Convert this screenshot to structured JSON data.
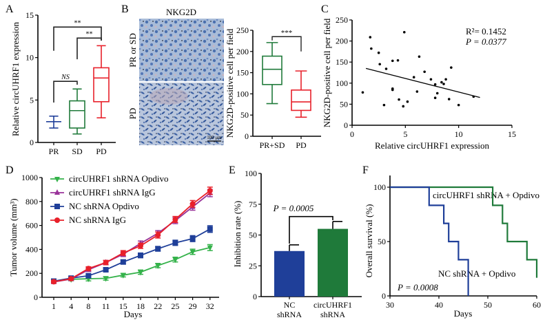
{
  "figure": {
    "panel_letters": [
      "A",
      "B",
      "C",
      "D",
      "E",
      "F"
    ]
  },
  "colors": {
    "blue": "#1f3f99",
    "green": "#1f7a3a",
    "red": "#e8202a",
    "light_green": "#34b24a",
    "purple": "#993399",
    "black": "#000000"
  },
  "chart_data": [
    {
      "panel": "A",
      "type": "box",
      "title": "",
      "xlabel": "",
      "ylabel": "Relative circUHRF1 expression",
      "ylim": [
        0,
        15
      ],
      "yticks": [
        "0",
        "5",
        "10",
        "15"
      ],
      "categories": [
        "PR",
        "SD",
        "PD"
      ],
      "boxes": [
        {
          "name": "PR",
          "color": "blue",
          "min": 1.7,
          "q1": 2.45,
          "median": 2.45,
          "q3": 2.45,
          "max": 3.1
        },
        {
          "name": "SD",
          "color": "green",
          "min": 1.0,
          "q1": 1.7,
          "median": 3.75,
          "q3": 4.9,
          "max": 6.3
        },
        {
          "name": "PD",
          "color": "red",
          "min": 2.9,
          "q1": 4.8,
          "median": 7.6,
          "q3": 8.8,
          "max": 11.4
        }
      ],
      "annotations": [
        {
          "from": "PR",
          "to": "SD",
          "text": "NS",
          "italic": true,
          "level": 7.2
        },
        {
          "from": "SD",
          "to": "PD",
          "text": "**",
          "italic": false,
          "level": 12.3
        },
        {
          "from": "PR",
          "to": "PD",
          "text": "**",
          "italic": false,
          "level": 13.6
        }
      ]
    },
    {
      "panel": "B",
      "type": "box",
      "image_title": "NKG2D",
      "image_row_labels": [
        "PR or SD",
        "PD"
      ],
      "scale_bar": "100 μm",
      "ylabel": "NKG2D-positive cell per field",
      "ylim": [
        0,
        250
      ],
      "yticks": [
        "0",
        "50",
        "100",
        "150",
        "200",
        "250"
      ],
      "categories": [
        "PR+SD",
        "PD"
      ],
      "boxes": [
        {
          "name": "PR+SD",
          "color": "green",
          "min": 77,
          "q1": 122,
          "median": 158,
          "q3": 189,
          "max": 221
        },
        {
          "name": "PD",
          "color": "red",
          "min": 45,
          "q1": 61,
          "median": 81,
          "q3": 109,
          "max": 154
        }
      ],
      "annotations": [
        {
          "from": "PR+SD",
          "to": "PD",
          "text": "***",
          "level": 235
        }
      ]
    },
    {
      "panel": "C",
      "type": "scatter",
      "xlabel": "Relative circUHRF1 expression",
      "ylabel": "NKG2D-positive cell per field",
      "xlim": [
        0,
        15
      ],
      "ylim": [
        0,
        250
      ],
      "xticks": [
        "0",
        "5",
        "10",
        "15"
      ],
      "yticks": [
        "0",
        "50",
        "100",
        "150",
        "200",
        "250"
      ],
      "stats": {
        "r2": "R²= 0.1452",
        "p": "P = 0.0377"
      },
      "points": [
        [
          1.0,
          78
        ],
        [
          1.7,
          209
        ],
        [
          1.8,
          182
        ],
        [
          2.5,
          172
        ],
        [
          2.6,
          145
        ],
        [
          3.0,
          48
        ],
        [
          3.2,
          134
        ],
        [
          3.8,
          153
        ],
        [
          3.8,
          87
        ],
        [
          3.8,
          84
        ],
        [
          4.3,
          154
        ],
        [
          4.4,
          61
        ],
        [
          4.8,
          45
        ],
        [
          4.9,
          221
        ],
        [
          5.2,
          56
        ],
        [
          5.8,
          114
        ],
        [
          6.1,
          80
        ],
        [
          6.3,
          163
        ],
        [
          6.8,
          127
        ],
        [
          7.4,
          109
        ],
        [
          7.8,
          97
        ],
        [
          7.8,
          65
        ],
        [
          8.0,
          76
        ],
        [
          8.4,
          102
        ],
        [
          8.6,
          98
        ],
        [
          8.8,
          109
        ],
        [
          9.1,
          62
        ],
        [
          9.3,
          137
        ],
        [
          10.0,
          48
        ],
        [
          11.4,
          68
        ]
      ],
      "fit_line": {
        "x": [
          1.3,
          12.0
        ],
        "y": [
          135,
          66
        ]
      }
    },
    {
      "panel": "D",
      "type": "line",
      "xlabel": "Days",
      "ylabel": "Tumor volume (mm³)",
      "ylim": [
        0,
        1000
      ],
      "yticks": [
        "0",
        "200",
        "400",
        "600",
        "800",
        "1000"
      ],
      "categories": [
        "1",
        "4",
        "8",
        "11",
        "15",
        "18",
        "22",
        "25",
        "29",
        "32"
      ],
      "legend_position": "top-left",
      "series": [
        {
          "name": "circUHRF1 shRNA  Opdivo",
          "color": "light_green",
          "marker": "triangle-down",
          "values": [
            135,
            150,
            155,
            158,
            185,
            210,
            265,
            315,
            380,
            415
          ],
          "errors": [
            12,
            12,
            18,
            15,
            15,
            18,
            18,
            20,
            22,
            25
          ]
        },
        {
          "name": "circUHRF1 shRNA  IgG",
          "color": "purple",
          "marker": "triangle-up",
          "values": [
            128,
            152,
            230,
            290,
            360,
            450,
            535,
            640,
            755,
            870
          ],
          "errors": [
            12,
            12,
            15,
            18,
            20,
            20,
            22,
            25,
            28,
            30
          ]
        },
        {
          "name": "NC shRNA  Opdivo",
          "color": "blue",
          "marker": "square",
          "values": [
            135,
            160,
            180,
            230,
            295,
            350,
            405,
            455,
            490,
            570
          ],
          "errors": [
            12,
            10,
            12,
            15,
            18,
            20,
            20,
            22,
            25,
            28
          ]
        },
        {
          "name": "NC shRNA  IgG",
          "color": "red",
          "marker": "circle",
          "values": [
            130,
            155,
            240,
            290,
            370,
            430,
            520,
            650,
            780,
            890
          ],
          "errors": [
            12,
            10,
            15,
            18,
            20,
            22,
            25,
            25,
            28,
            30
          ]
        }
      ]
    },
    {
      "panel": "E",
      "type": "bar",
      "xlabel": "",
      "ylabel": "Inhibition rate (%)",
      "ylim": [
        0,
        100
      ],
      "yticks": [
        "0",
        "25",
        "50",
        "75",
        "100"
      ],
      "categories": [
        [
          "NC",
          "shRNA"
        ],
        [
          "circUHRF1",
          "shRNA"
        ]
      ],
      "values": [
        37,
        55
      ],
      "errors": [
        5,
        6
      ],
      "bar_colors": [
        "blue",
        "green"
      ],
      "annotation": {
        "text": "P = 0.0005",
        "level": 65
      }
    },
    {
      "panel": "F",
      "type": "line",
      "subtype": "kaplan-meier",
      "xlabel": "Days",
      "ylabel": "Overall survival (%)",
      "xlim": [
        30,
        60
      ],
      "ylim": [
        0,
        100
      ],
      "xticks": [
        "30",
        "40",
        "50",
        "60"
      ],
      "yticks": [
        "0",
        "50",
        "100"
      ],
      "p_value": "P = 0.0008",
      "series": [
        {
          "name": "NC shRNA + Opdivo",
          "color": "blue",
          "steps": [
            [
              30,
              100
            ],
            [
              38,
              83.3
            ],
            [
              41,
              66.7
            ],
            [
              42,
              50
            ],
            [
              44,
              33.3
            ],
            [
              46,
              0
            ]
          ]
        },
        {
          "name": "circUHRF1 shRNA + Opdivo",
          "color": "green",
          "steps": [
            [
              30,
              100
            ],
            [
              51,
              83.3
            ],
            [
              53,
              66.7
            ],
            [
              54,
              50
            ],
            [
              58,
              33.3
            ],
            [
              60,
              16.7
            ]
          ]
        }
      ]
    }
  ]
}
